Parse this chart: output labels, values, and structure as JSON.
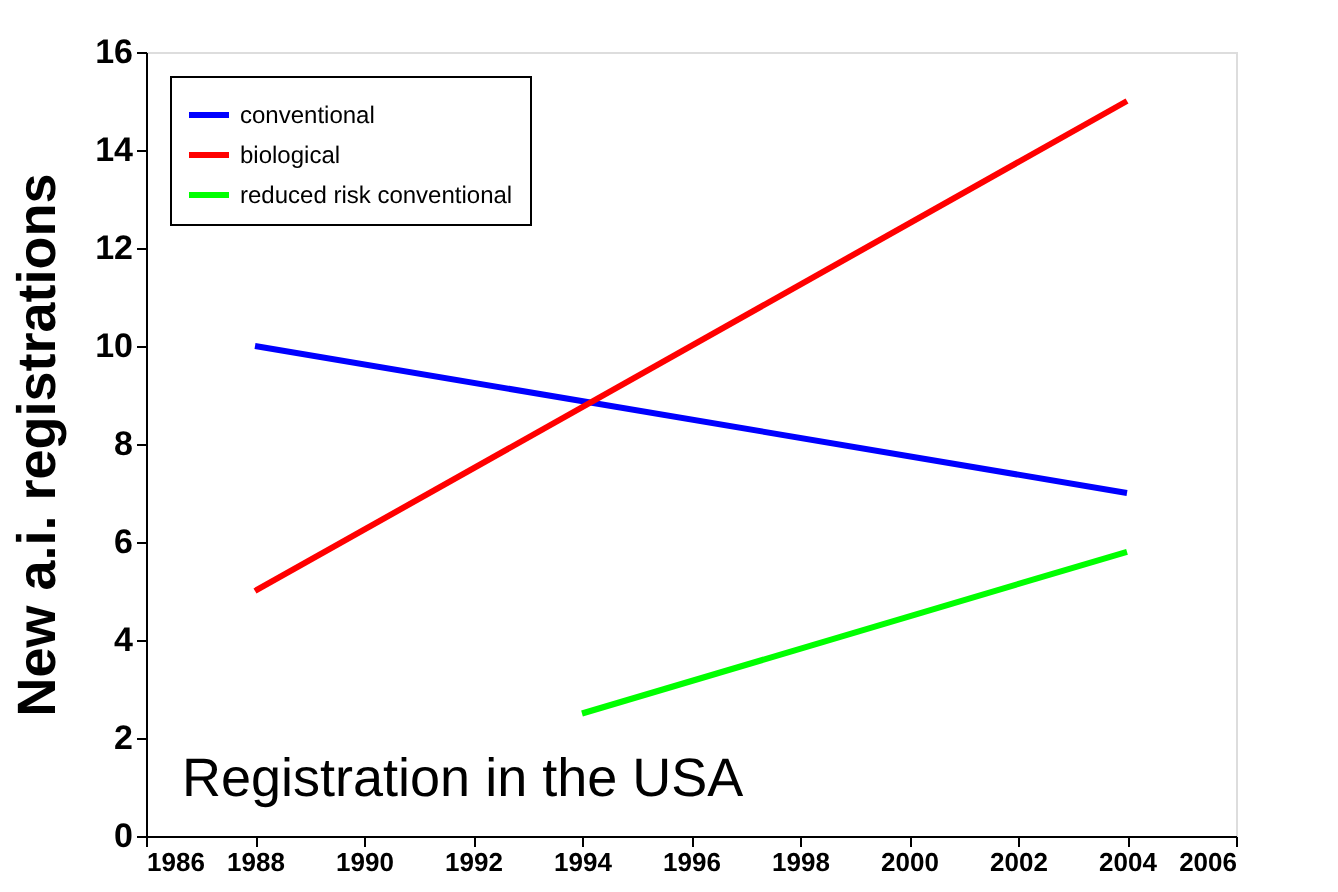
{
  "chart_data": {
    "type": "line",
    "ylabel": "New a.i. registrations",
    "annotations": [
      "Registration in the USA"
    ],
    "xlim": [
      1986,
      2006
    ],
    "xticks": [
      1986,
      1988,
      1990,
      1992,
      1994,
      1996,
      1998,
      2000,
      2002,
      2004,
      2006
    ],
    "ylim": [
      0,
      16
    ],
    "yticks": [
      0,
      2,
      4,
      6,
      8,
      10,
      12,
      14,
      16
    ],
    "grid": false,
    "legend": "top left",
    "marker": "none",
    "line_style": "solid",
    "series": [
      {
        "name": "conventional",
        "color": "#0000ff",
        "x": [
          1988,
          2004
        ],
        "values": [
          10,
          7
        ]
      },
      {
        "name": "biological",
        "color": "#ff0000",
        "x": [
          1988,
          2004
        ],
        "values": [
          5,
          15
        ]
      },
      {
        "name": "reduced risk conventional",
        "color": "#00ff00",
        "x": [
          1994,
          2004
        ],
        "values": [
          2.5,
          5.8
        ]
      }
    ]
  }
}
